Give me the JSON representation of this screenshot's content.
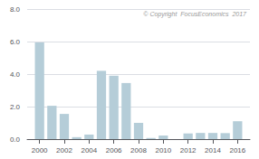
{
  "chart_data": {
    "type": "bar",
    "x": [
      2000,
      2001,
      2002,
      2003,
      2004,
      2005,
      2006,
      2007,
      2008,
      2009,
      2010,
      2011,
      2012,
      2013,
      2014,
      2015,
      2016
    ],
    "values": [
      5.95,
      2.05,
      1.55,
      0.12,
      0.28,
      4.2,
      3.9,
      3.45,
      1.0,
      0.07,
      0.22,
      0.0,
      0.35,
      0.38,
      0.38,
      0.37,
      1.1
    ],
    "color": "#b5cdd8",
    "xlim": [
      1999,
      2017
    ],
    "xticks": [
      2000,
      2002,
      2004,
      2006,
      2008,
      2010,
      2012,
      2014,
      2016
    ],
    "ylim": [
      0,
      8.0
    ],
    "yticks": [
      {
        "value": 0.0,
        "label": "0.0"
      },
      {
        "value": 2.0,
        "label": "2.0"
      },
      {
        "value": 4.0,
        "label": "4.0"
      },
      {
        "value": 6.0,
        "label": "6.0"
      },
      {
        "value": 8.0,
        "label": "8.0"
      }
    ],
    "grid": true,
    "annotation": "© Copyright  FocusEconomics  2017"
  }
}
